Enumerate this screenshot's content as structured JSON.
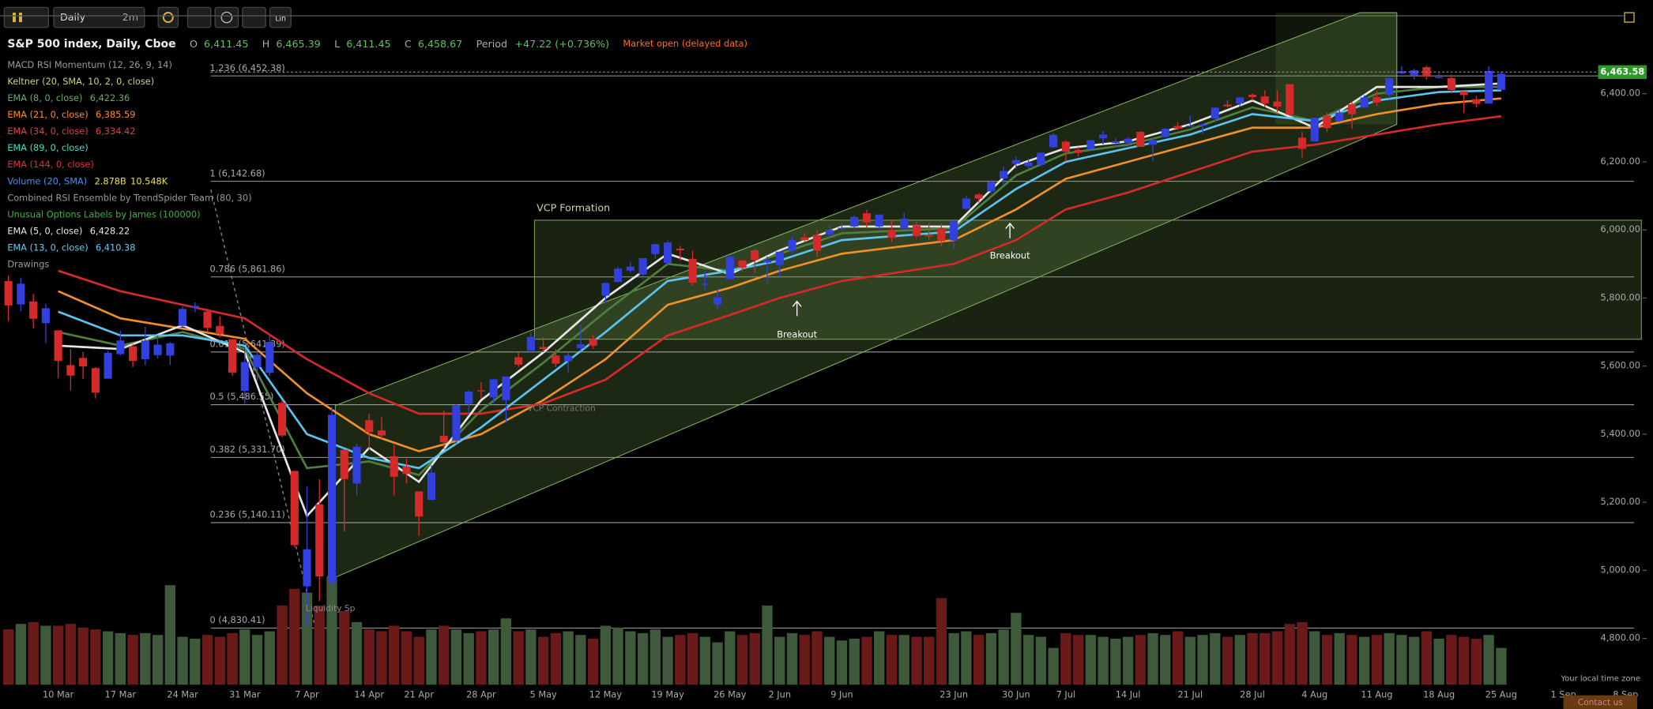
{
  "toolbar": {
    "interval": "Daily",
    "refresh": "2m",
    "scale": "Lin"
  },
  "chart_data": {
    "type": "candlestick",
    "title": "S&P 500 index, Daily, Cboe",
    "quote": [
      {
        "label": "O",
        "value": "6,411.45"
      },
      {
        "label": "H",
        "value": "6,465.39"
      },
      {
        "label": "L",
        "value": "6,411.45"
      },
      {
        "label": "C",
        "value": "6,458.67"
      }
    ],
    "period_label": "Period",
    "period_change": "+47.22 (+0.736%)",
    "status": "Market open (delayed data)",
    "indicators": [
      {
        "name": "MACD RSI Momentum (12, 26, 9, 14)",
        "color": "#9a9a9a"
      },
      {
        "name": "Keltner (20, SMA, 10, 2, 0, close)",
        "color": "#c8d48a"
      },
      {
        "name": "EMA (8, 0, close)",
        "color": "#6fa86f",
        "value": "6,422.36",
        "line_color": "#4f7f3f",
        "values": [
          5700,
          5660,
          5700,
          5650,
          5300,
          5320,
          5280,
          5470,
          5610,
          5760,
          5900,
          5880,
          5930,
          5990,
          6005,
          6160,
          6225,
          6250,
          6295,
          6360,
          6320,
          6400,
          6420,
          6420
        ]
      },
      {
        "name": "EMA (21, 0, close)",
        "color": "#ff8c2a",
        "value": "6,385.59",
        "line_color": "#f0902a",
        "values": [
          5820,
          5740,
          5710,
          5680,
          5520,
          5400,
          5350,
          5400,
          5500,
          5620,
          5780,
          5830,
          5880,
          5930,
          5970,
          6060,
          6150,
          6200,
          6250,
          6300,
          6300,
          6340,
          6370,
          6386
        ]
      },
      {
        "name": "EMA (34, 0, close)",
        "color": "#e04040",
        "value": "6,334.42",
        "line_color": "#d42a2a",
        "values": [
          5880,
          5820,
          5780,
          5740,
          5620,
          5520,
          5460,
          5460,
          5490,
          5560,
          5690,
          5750,
          5800,
          5850,
          5900,
          5970,
          6060,
          6110,
          6170,
          6230,
          6250,
          6280,
          6310,
          6334
        ]
      },
      {
        "name": "EMA (89, 0, close)",
        "color": "#3fe0c0"
      },
      {
        "name": "EMA (144, 0, close)",
        "color": "#e03030"
      },
      {
        "name": "Volume (20, SMA)",
        "color": "#4a90e8",
        "value": "2.878B",
        "value2": "10.548K",
        "value2_color": "#e8e050"
      },
      {
        "name": "Combined RSI Ensemble by TrendSpider Team (80, 30)",
        "color": "#9a9a9a"
      },
      {
        "name": "Unusual Options Labels by James (100000)",
        "color": "#3fb03f"
      },
      {
        "name": "EMA (5, 0, close)",
        "color": "#e8e8e8",
        "value": "6,428.22",
        "line_color": "#e6e6e6",
        "values": [
          5660,
          5650,
          5720,
          5640,
          5160,
          5360,
          5260,
          5500,
          5640,
          5800,
          5930,
          5870,
          5940,
          6010,
          6010,
          6190,
          6240,
          6260,
          6310,
          6380,
          6300,
          6420,
          6420,
          6430
        ]
      },
      {
        "name": "EMA (13, 0, close)",
        "color": "#6cc8f0",
        "value": "6,410.38",
        "line_color": "#5bc3f0",
        "values": [
          5760,
          5690,
          5690,
          5660,
          5400,
          5330,
          5300,
          5420,
          5560,
          5700,
          5850,
          5880,
          5910,
          5970,
          5995,
          6120,
          6200,
          6240,
          6280,
          6340,
          6320,
          6380,
          6405,
          6410
        ]
      },
      {
        "name": "Drawings",
        "color": "#9a9a9a"
      }
    ],
    "ema_x": [
      "10 Mar",
      "17 Mar",
      "24 Mar",
      "31 Mar",
      "7 Apr",
      "14 Apr",
      "21 Apr",
      "28 Apr",
      "5 May",
      "12 May",
      "19 May",
      "26 May",
      "2 Jun",
      "9 Jun",
      "23 Jun",
      "30 Jun",
      "7 Jul",
      "14 Jul",
      "21 Jul",
      "28 Jul",
      "4 Aug",
      "11 Aug",
      "18 Aug",
      "25 Aug"
    ],
    "categories": [
      null,
      null,
      null,
      null,
      "10 Mar",
      null,
      null,
      null,
      null,
      "17 Mar",
      null,
      null,
      null,
      null,
      "24 Mar",
      null,
      null,
      null,
      null,
      "31 Mar",
      null,
      null,
      null,
      null,
      "7 Apr",
      null,
      null,
      null,
      null,
      "14 Apr",
      null,
      null,
      null,
      "21 Apr",
      null,
      null,
      null,
      null,
      "28 Apr",
      null,
      null,
      null,
      null,
      "5 May",
      null,
      null,
      null,
      null,
      "12 May",
      null,
      null,
      null,
      null,
      "19 May",
      null,
      null,
      null,
      null,
      "26 May",
      null,
      null,
      null,
      "2 Jun",
      null,
      null,
      null,
      null,
      "9 Jun",
      null,
      null,
      null,
      null,
      null,
      null,
      null,
      null,
      "23 Jun",
      null,
      null,
      null,
      null,
      "30 Jun",
      null,
      null,
      null,
      "7 Jul",
      null,
      null,
      null,
      null,
      "14 Jul",
      null,
      null,
      null,
      null,
      "21 Jul",
      null,
      null,
      null,
      null,
      "28 Jul",
      null,
      null,
      null,
      null,
      "4 Aug",
      null,
      null,
      null,
      null,
      "11 Aug",
      null,
      null,
      null,
      null,
      "18 Aug",
      null,
      null,
      null,
      null,
      "25 Aug",
      null,
      null,
      null,
      null,
      "1 Sep",
      null,
      null,
      null,
      null,
      "8 Sep",
      null
    ],
    "ohlc": [
      [
        5850,
        5866,
        5732,
        5778
      ],
      [
        5781,
        5860,
        5762,
        5842
      ],
      [
        5790,
        5812,
        5711,
        5739
      ],
      [
        5726,
        5783,
        5667,
        5770
      ],
      [
        5705,
        5705,
        5564,
        5615
      ],
      [
        5603,
        5649,
        5529,
        5572
      ],
      [
        5624,
        5642,
        5562,
        5599
      ],
      [
        5594,
        5597,
        5505,
        5522
      ],
      [
        5563,
        5645,
        5563,
        5639
      ],
      [
        5635,
        5704,
        5632,
        5675
      ],
      [
        5658,
        5665,
        5597,
        5615
      ],
      [
        5620,
        5715,
        5602,
        5675
      ],
      [
        5632,
        5690,
        5622,
        5663
      ],
      [
        5631,
        5670,
        5603,
        5667
      ],
      [
        5718,
        5775,
        5718,
        5768
      ],
      [
        5771,
        5787,
        5758,
        5777
      ],
      [
        5760,
        5768,
        5700,
        5712
      ],
      [
        5718,
        5746,
        5684,
        5694
      ],
      [
        5679,
        5679,
        5572,
        5581
      ],
      [
        5527,
        5651,
        5489,
        5612
      ],
      [
        5597,
        5650,
        5558,
        5633
      ],
      [
        5580,
        5695,
        5571,
        5671
      ],
      [
        5492,
        5500,
        5391,
        5396
      ],
      [
        5292,
        5292,
        5069,
        5074
      ],
      [
        4953,
        5247,
        4835,
        5062
      ],
      [
        5194,
        5268,
        4910,
        4982
      ],
      [
        4966,
        5481,
        4950,
        5457
      ],
      [
        5354,
        5354,
        5115,
        5268
      ],
      [
        5255,
        5372,
        5220,
        5363
      ],
      [
        5441,
        5460,
        5356,
        5406
      ],
      [
        5411,
        5450,
        5386,
        5396
      ],
      [
        5335,
        5368,
        5220,
        5275
      ],
      [
        5305,
        5328,
        5255,
        5283
      ],
      [
        5232,
        5232,
        5101,
        5158
      ],
      [
        5207,
        5309,
        5207,
        5287
      ],
      [
        5395,
        5469,
        5356,
        5376
      ],
      [
        5381,
        5488,
        5371,
        5485
      ],
      [
        5489,
        5528,
        5456,
        5525
      ],
      [
        5529,
        5553,
        5505,
        5528
      ],
      [
        5508,
        5563,
        5491,
        5561
      ],
      [
        5500,
        5570,
        5434,
        5569
      ],
      [
        5626,
        5640,
        5598,
        5604
      ],
      [
        5645,
        5700,
        5645,
        5686
      ],
      [
        5656,
        5684,
        5641,
        5650
      ],
      [
        5631,
        5650,
        5597,
        5607
      ],
      [
        5614,
        5639,
        5580,
        5631
      ],
      [
        5653,
        5721,
        5644,
        5664
      ],
      [
        5679,
        5691,
        5650,
        5660
      ],
      [
        5807,
        5845,
        5787,
        5844
      ],
      [
        5847,
        5892,
        5846,
        5886
      ],
      [
        5880,
        5907,
        5874,
        5892
      ],
      [
        5869,
        5917,
        5856,
        5917
      ],
      [
        5929,
        5959,
        5915,
        5958
      ],
      [
        5903,
        5969,
        5895,
        5963
      ],
      [
        5945,
        5953,
        5909,
        5940
      ],
      [
        5915,
        5939,
        5836,
        5845
      ],
      [
        5842,
        5879,
        5825,
        5842
      ],
      [
        5781,
        5829,
        5767,
        5802
      ],
      [
        5855,
        5924,
        5855,
        5921
      ],
      [
        5910,
        5911,
        5878,
        5889
      ],
      [
        5940,
        5944,
        5874,
        5912
      ],
      [
        5904,
        5922,
        5844,
        5911
      ],
      [
        5897,
        5937,
        5862,
        5936
      ],
      [
        5939,
        5981,
        5929,
        5970
      ],
      [
        5978,
        5991,
        5966,
        5970
      ],
      [
        5985,
        5999,
        5921,
        5939
      ],
      [
        5987,
        6017,
        5974,
        6000
      ],
      [
        6005,
        6022,
        5994,
        6006
      ],
      [
        6010,
        6043,
        6002,
        6038
      ],
      [
        6049,
        6059,
        6003,
        6022
      ],
      [
        6010,
        6045,
        5999,
        6045
      ],
      [
        6000,
        6027,
        5964,
        5977
      ],
      [
        6004,
        6050,
        6004,
        6033
      ],
      [
        6012,
        6024,
        5978,
        5982
      ],
      [
        5985,
        6019,
        5971,
        5981
      ],
      [
        6005,
        6018,
        5952,
        5967
      ],
      [
        5969,
        6028,
        5943,
        6025
      ],
      [
        6062,
        6101,
        6059,
        6092
      ],
      [
        6104,
        6108,
        6080,
        6092
      ],
      [
        6113,
        6146,
        6106,
        6141
      ],
      [
        6151,
        6187,
        6132,
        6173
      ],
      [
        6194,
        6215,
        6180,
        6205
      ],
      [
        6187,
        6210,
        6178,
        6198
      ],
      [
        6191,
        6227,
        6187,
        6227
      ],
      [
        6243,
        6284,
        6241,
        6279
      ],
      [
        6259,
        6263,
        6201,
        6230
      ],
      [
        6235,
        6243,
        6215,
        6226
      ],
      [
        6238,
        6264,
        6230,
        6263
      ],
      [
        6269,
        6290,
        6251,
        6280
      ],
      [
        6255,
        6269,
        6242,
        6260
      ],
      [
        6255,
        6273,
        6242,
        6268
      ],
      [
        6288,
        6290,
        6244,
        6244
      ],
      [
        6250,
        6271,
        6201,
        6264
      ],
      [
        6273,
        6299,
        6270,
        6297
      ],
      [
        6305,
        6316,
        6294,
        6297
      ],
      [
        6304,
        6336,
        6303,
        6306
      ],
      [
        6306,
        6310,
        6282,
        6309
      ],
      [
        6327,
        6360,
        6318,
        6359
      ],
      [
        6368,
        6381,
        6360,
        6363
      ],
      [
        6371,
        6390,
        6363,
        6389
      ],
      [
        6397,
        6401,
        6380,
        6390
      ],
      [
        6392,
        6410,
        6360,
        6371
      ],
      [
        6377,
        6409,
        6346,
        6362
      ],
      [
        6428,
        6428,
        6336,
        6339
      ],
      [
        6271,
        6288,
        6213,
        6238
      ],
      [
        6260,
        6330,
        6260,
        6329
      ],
      [
        6336,
        6344,
        6288,
        6299
      ],
      [
        6320,
        6352,
        6317,
        6345
      ],
      [
        6369,
        6378,
        6297,
        6340
      ],
      [
        6359,
        6395,
        6358,
        6389
      ],
      [
        6390,
        6409,
        6364,
        6374
      ],
      [
        6397,
        6446,
        6386,
        6446
      ],
      [
        6460,
        6481,
        6457,
        6466
      ],
      [
        6453,
        6473,
        6442,
        6469
      ],
      [
        6478,
        6482,
        6441,
        6450
      ],
      [
        6446,
        6460,
        6444,
        6449
      ],
      [
        6446,
        6456,
        6401,
        6411
      ],
      [
        6407,
        6407,
        6343,
        6396
      ],
      [
        6384,
        6394,
        6360,
        6370
      ],
      [
        6371,
        6481,
        6371,
        6467
      ],
      [
        6411.45,
        6465.39,
        6411.45,
        6458.67
      ],
      null,
      null,
      null,
      null,
      null,
      null,
      null,
      null,
      null,
      null,
      null
    ],
    "volume": [
      3.0,
      3.3,
      3.4,
      3.2,
      3.2,
      3.3,
      3.1,
      3.0,
      2.9,
      2.8,
      2.7,
      2.8,
      2.7,
      5.4,
      2.6,
      2.5,
      2.7,
      2.6,
      2.8,
      3.0,
      2.7,
      2.9,
      4.3,
      5.2,
      5.0,
      4.3,
      5.9,
      4.0,
      3.4,
      3.0,
      2.9,
      3.2,
      2.9,
      2.6,
      3.0,
      3.2,
      3.0,
      2.8,
      2.9,
      3.0,
      3.6,
      2.9,
      3.0,
      2.6,
      2.8,
      2.9,
      2.7,
      2.5,
      3.2,
      3.1,
      2.9,
      2.8,
      3.0,
      2.6,
      2.7,
      2.8,
      2.6,
      2.3,
      2.9,
      2.7,
      2.8,
      4.3,
      2.6,
      2.8,
      2.7,
      2.9,
      2.6,
      2.4,
      2.5,
      2.6,
      2.9,
      2.7,
      2.7,
      2.6,
      2.6,
      4.7,
      2.8,
      2.9,
      2.7,
      2.8,
      3.0,
      3.9,
      2.7,
      2.6,
      2.0,
      2.8,
      2.7,
      2.7,
      2.6,
      2.5,
      2.6,
      2.7,
      2.8,
      2.7,
      2.9,
      2.6,
      2.7,
      2.8,
      2.6,
      2.7,
      2.8,
      2.8,
      2.9,
      3.3,
      3.4,
      2.9,
      2.7,
      2.8,
      2.7,
      2.6,
      2.7,
      2.8,
      2.7,
      2.6,
      2.9,
      2.5,
      2.7,
      2.6,
      2.5,
      2.7,
      2.0,
      null,
      null,
      null,
      null,
      null,
      null,
      null,
      null,
      null,
      null,
      null
    ],
    "up_color": "#3340e0",
    "down_color": "#d42a2a",
    "volume_up_color": "#3e5a3a",
    "volume_down_color": "#6b1a1a",
    "ylim": [
      4664,
      6638
    ],
    "yticks": [
      {
        "value": 4800,
        "label": "4,800.00"
      },
      {
        "value": 5000,
        "label": "5,000.00"
      },
      {
        "value": 5200,
        "label": "5,200.00"
      },
      {
        "value": 5400,
        "label": "5,400.00"
      },
      {
        "value": 5600,
        "label": "5,600.00"
      },
      {
        "value": 5800,
        "label": "5,800.00"
      },
      {
        "value": 6000,
        "label": "6,000.00"
      },
      {
        "value": 6200,
        "label": "6,200.00"
      },
      {
        "value": 6400,
        "label": "6,400.00"
      }
    ],
    "fib_levels": [
      {
        "value": 6452.38,
        "label": "1.236 (6,452.38)"
      },
      {
        "value": 6142.68,
        "label": "1 (6,142.68)"
      },
      {
        "value": 5861.86,
        "label": "0.786 (5,861.86)"
      },
      {
        "value": 5641.39,
        "label": "0.618 (5,641.39)"
      },
      {
        "value": 5486.55,
        "label": "0.5 (5,486.55)"
      },
      {
        "value": 5331.7,
        "label": "0.382 (5,331.70)"
      },
      {
        "value": 5140.11,
        "label": "0.236 (5,140.11)"
      },
      {
        "value": 4830.41,
        "label": "0 (4,830.41)"
      }
    ],
    "last_price": {
      "value": 6463.58,
      "label": "6,463.58"
    }
  },
  "annotations": {
    "vcp": "VCP Formation",
    "breakout_1": "Breakout",
    "breakout_2": "Breakout",
    "contraction": "VCP Contraction",
    "spike": "Liquidity Sp"
  },
  "footer": {
    "timezone": "Your local time zone",
    "contact": "Contact us"
  }
}
